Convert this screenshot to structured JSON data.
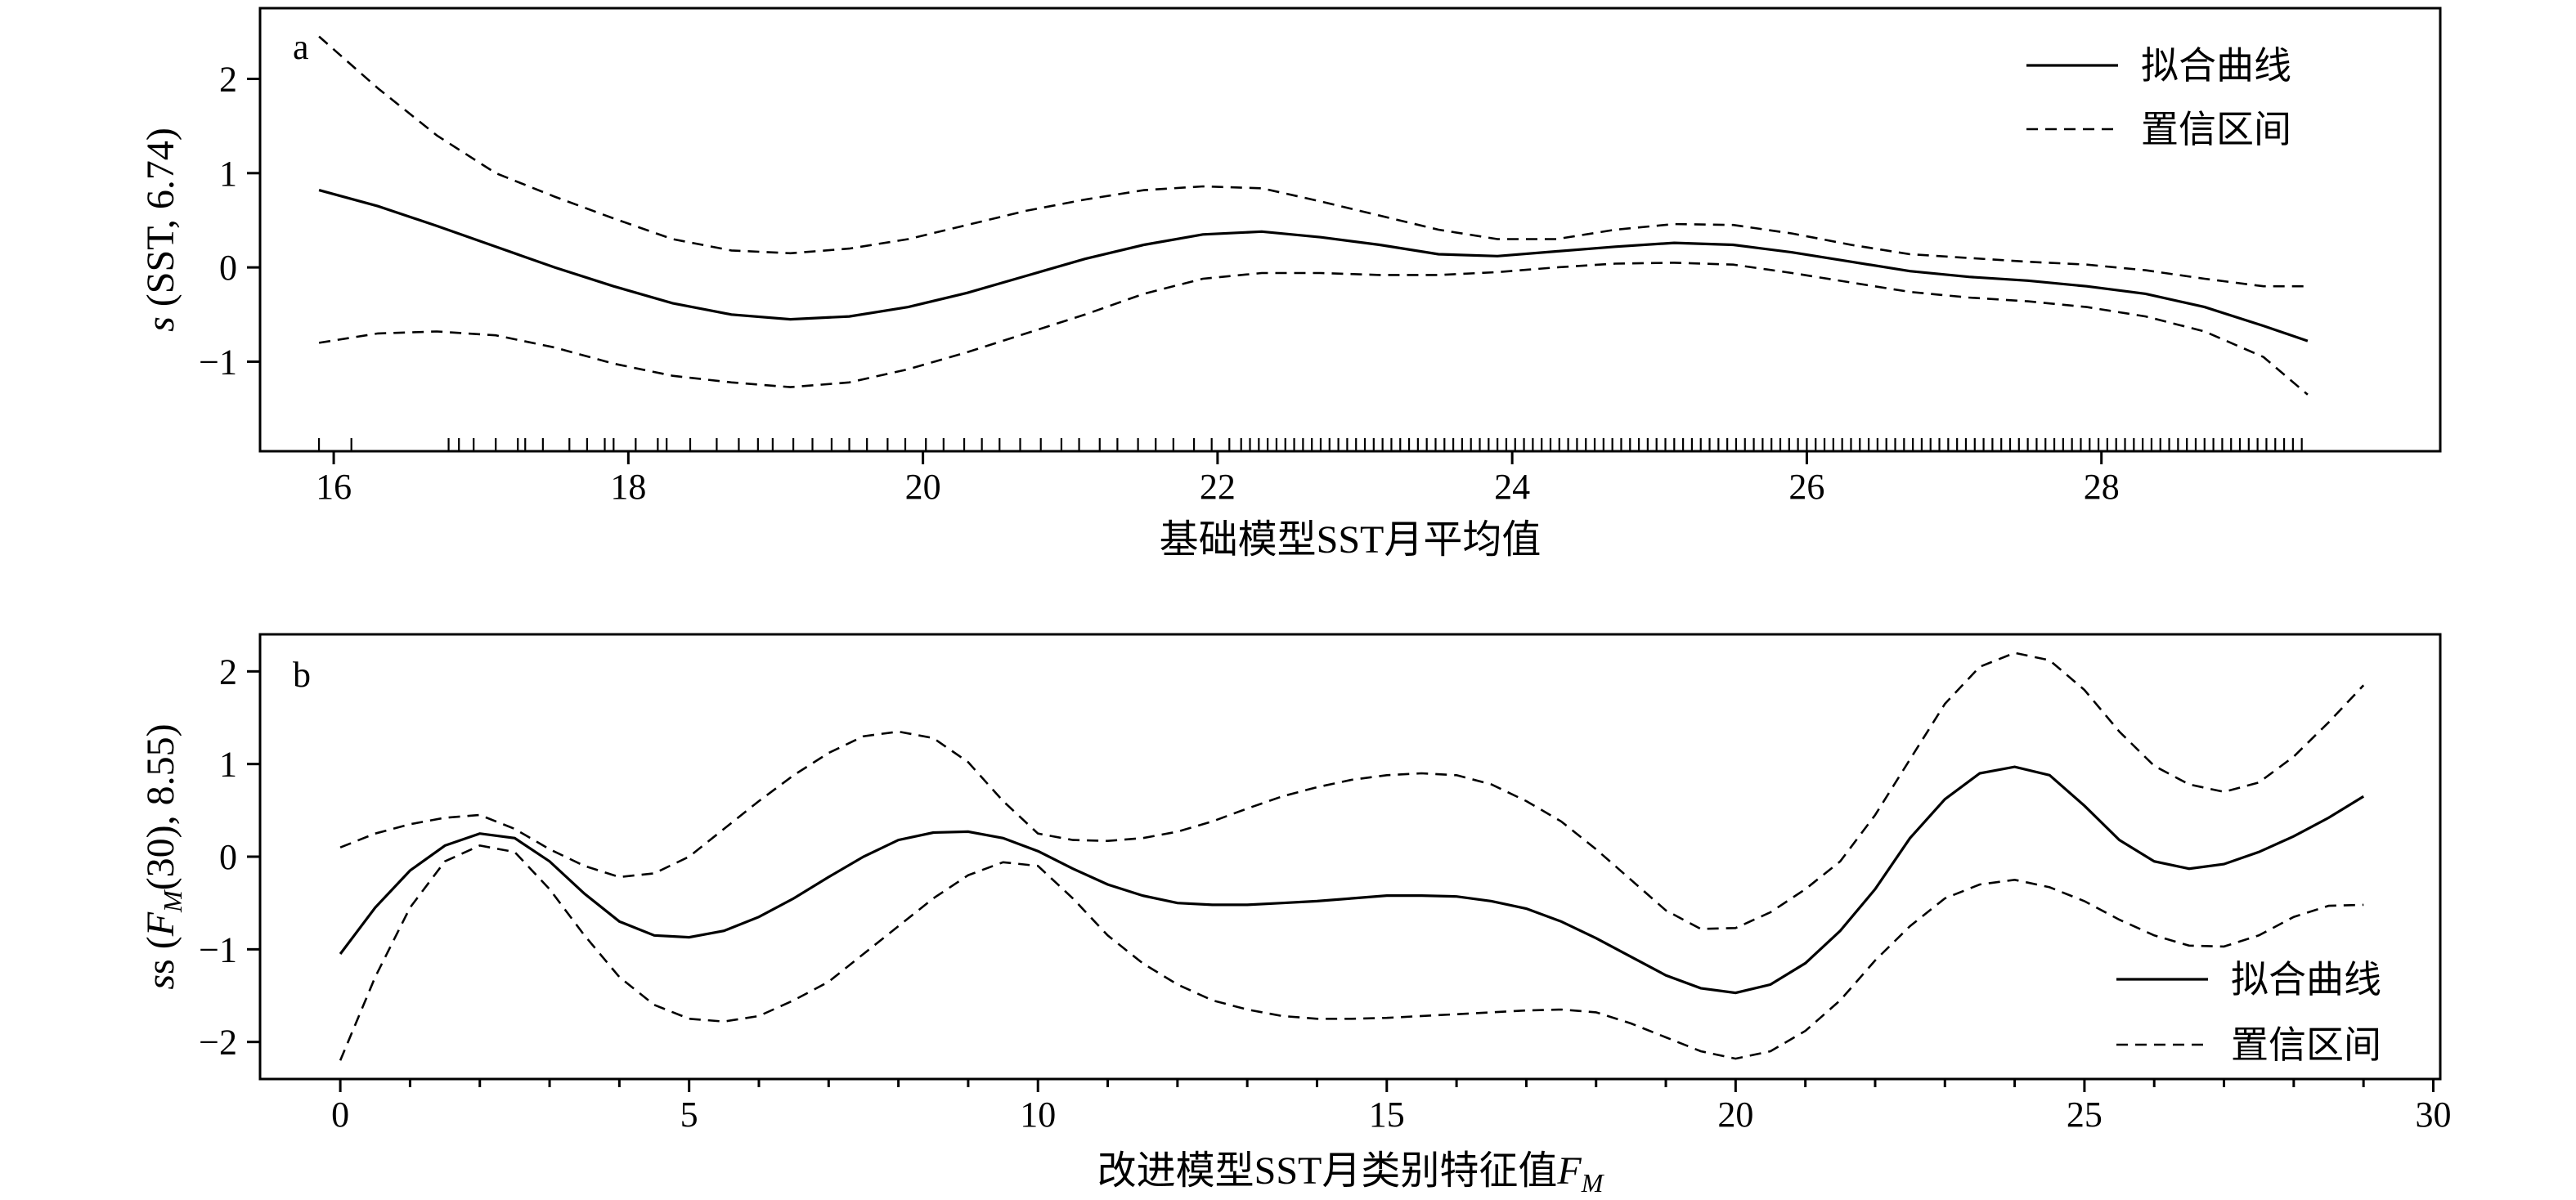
{
  "chart_data": [
    {
      "type": "line",
      "panel_label": "a",
      "xlabel": "基础模型SST月平均值",
      "ylabel": "s (SST, 6.74)",
      "xlim": [
        15.5,
        30.3
      ],
      "ylim": [
        -1.95,
        2.75
      ],
      "xticks": [
        16,
        18,
        20,
        22,
        24,
        26,
        28
      ],
      "yticks": [
        -1,
        0,
        1,
        2
      ],
      "minor_xticks": [],
      "legend_position": "top-right",
      "grid": false,
      "series": [
        {
          "name": "拟合曲线",
          "style": "solid",
          "x": [
            15.9,
            16.3,
            16.7,
            17.1,
            17.5,
            17.9,
            18.3,
            18.7,
            19.1,
            19.5,
            19.9,
            20.3,
            20.7,
            21.1,
            21.5,
            21.9,
            22.3,
            22.7,
            23.1,
            23.5,
            23.9,
            24.3,
            24.7,
            25.1,
            25.5,
            25.9,
            26.3,
            26.7,
            27.1,
            27.5,
            27.9,
            28.3,
            28.7,
            29.1,
            29.4
          ],
          "values": [
            0.82,
            0.65,
            0.44,
            0.22,
            0.0,
            -0.2,
            -0.38,
            -0.5,
            -0.55,
            -0.52,
            -0.42,
            -0.27,
            -0.09,
            0.09,
            0.24,
            0.35,
            0.38,
            0.32,
            0.24,
            0.14,
            0.12,
            0.17,
            0.22,
            0.26,
            0.24,
            0.16,
            0.06,
            -0.04,
            -0.1,
            -0.14,
            -0.2,
            -0.28,
            -0.42,
            -0.62,
            -0.78
          ]
        },
        {
          "name": "置信区间",
          "style": "dashed",
          "x": [
            15.9,
            16.3,
            16.7,
            17.1,
            17.5,
            17.9,
            18.3,
            18.7,
            19.1,
            19.5,
            19.9,
            20.3,
            20.7,
            21.1,
            21.5,
            21.9,
            22.3,
            22.7,
            23.1,
            23.5,
            23.9,
            24.3,
            24.7,
            25.1,
            25.5,
            25.9,
            26.3,
            26.7,
            27.1,
            27.5,
            27.9,
            28.3,
            28.7,
            29.1,
            29.4
          ],
          "values": [
            2.45,
            1.9,
            1.4,
            1.0,
            0.75,
            0.52,
            0.3,
            0.18,
            0.15,
            0.2,
            0.3,
            0.45,
            0.6,
            0.72,
            0.82,
            0.86,
            0.84,
            0.7,
            0.55,
            0.4,
            0.3,
            0.3,
            0.4,
            0.46,
            0.45,
            0.36,
            0.24,
            0.14,
            0.1,
            0.06,
            0.03,
            -0.03,
            -0.12,
            -0.2,
            -0.2
          ]
        },
        {
          "name": "",
          "style": "dashed",
          "x": [
            15.9,
            16.3,
            16.7,
            17.1,
            17.5,
            17.9,
            18.3,
            18.7,
            19.1,
            19.5,
            19.9,
            20.3,
            20.7,
            21.1,
            21.5,
            21.9,
            22.3,
            22.7,
            23.1,
            23.5,
            23.9,
            24.3,
            24.7,
            25.1,
            25.5,
            25.9,
            26.3,
            26.7,
            27.1,
            27.5,
            27.9,
            28.3,
            28.7,
            29.1,
            29.4
          ],
          "values": [
            -0.8,
            -0.7,
            -0.68,
            -0.72,
            -0.85,
            -1.02,
            -1.15,
            -1.22,
            -1.27,
            -1.22,
            -1.08,
            -0.9,
            -0.7,
            -0.5,
            -0.28,
            -0.12,
            -0.06,
            -0.06,
            -0.08,
            -0.08,
            -0.05,
            0.0,
            0.04,
            0.05,
            0.03,
            -0.06,
            -0.16,
            -0.26,
            -0.32,
            -0.36,
            -0.42,
            -0.52,
            -0.68,
            -0.95,
            -1.35
          ]
        }
      ],
      "rug_x": [
        15.9,
        16.12,
        16.78,
        16.85,
        16.95,
        17.1,
        17.25,
        17.3,
        17.42,
        17.6,
        17.72,
        17.84,
        17.9,
        18.05,
        18.2,
        18.26,
        18.42,
        18.6,
        18.75,
        18.88,
        18.98,
        19.12,
        19.25,
        19.38,
        19.5,
        19.62,
        19.76,
        19.88,
        20.02,
        20.14,
        20.28,
        20.4,
        20.52,
        20.66,
        20.8,
        20.94,
        21.06,
        21.2,
        21.32,
        21.46,
        21.58,
        21.7,
        21.84,
        21.96,
        22.08,
        22.16,
        22.22,
        22.28,
        22.34,
        22.4,
        22.46,
        22.52,
        22.58,
        22.64,
        22.7,
        22.76,
        22.82,
        22.88,
        22.94,
        23.0,
        23.06,
        23.12,
        23.18,
        23.24,
        23.3,
        23.36,
        23.42,
        23.48,
        23.54,
        23.6,
        23.66,
        23.72,
        23.78,
        23.84,
        23.9,
        23.96,
        24.02,
        24.08,
        24.14,
        24.2,
        24.26,
        24.32,
        24.38,
        24.44,
        24.5,
        24.56,
        24.62,
        24.68,
        24.74,
        24.8,
        24.86,
        24.92,
        24.98,
        25.04,
        25.1,
        25.16,
        25.22,
        25.28,
        25.34,
        25.4,
        25.46,
        25.52,
        25.58,
        25.64,
        25.7,
        25.76,
        25.82,
        25.88,
        25.94,
        26.0,
        26.06,
        26.12,
        26.18,
        26.24,
        26.3,
        26.36,
        26.42,
        26.48,
        26.54,
        26.6,
        26.66,
        26.72,
        26.78,
        26.84,
        26.9,
        26.96,
        27.02,
        27.08,
        27.14,
        27.2,
        27.26,
        27.32,
        27.38,
        27.44,
        27.5,
        27.56,
        27.62,
        27.68,
        27.74,
        27.8,
        27.86,
        27.92,
        27.98,
        28.04,
        28.1,
        28.16,
        28.22,
        28.28,
        28.34,
        28.4,
        28.46,
        28.52,
        28.58,
        28.64,
        28.7,
        28.76,
        28.82,
        28.88,
        28.94,
        29.0,
        29.06,
        29.12,
        29.18,
        29.24,
        29.3,
        29.36
      ]
    },
    {
      "type": "line",
      "panel_label": "b",
      "xlabel": "改进模型SST月类别特征值F_M",
      "xlabel_parts": [
        "改进模型SST月类别特征值",
        "F",
        "M"
      ],
      "ylabel": "s (F_M(30), 8.55)",
      "ylabel_parts": [
        "s (",
        "F",
        "M",
        "(30), 8.55)"
      ],
      "xlim": [
        -1.15,
        30.1
      ],
      "ylim": [
        -2.4,
        2.4
      ],
      "xticks": [
        0,
        5,
        10,
        15,
        20,
        25,
        30
      ],
      "yticks": [
        -2,
        -1,
        0,
        1,
        2
      ],
      "minor_xticks": [
        1,
        2,
        3,
        4,
        6,
        7,
        8,
        9,
        11,
        12,
        13,
        14,
        16,
        17,
        18,
        19,
        21,
        22,
        23,
        24,
        26,
        27,
        28,
        29
      ],
      "legend_position": "bottom-right",
      "grid": false,
      "series": [
        {
          "name": "拟合曲线",
          "style": "solid",
          "x": [
            0,
            0.5,
            1,
            1.5,
            2,
            2.5,
            3,
            3.5,
            4,
            4.5,
            5,
            5.5,
            6,
            6.5,
            7,
            7.5,
            8,
            8.5,
            9,
            9.5,
            10,
            10.5,
            11,
            11.5,
            12,
            12.5,
            13,
            13.5,
            14,
            14.5,
            15,
            15.5,
            16,
            16.5,
            17,
            17.5,
            18,
            18.5,
            19,
            19.5,
            20,
            20.5,
            21,
            21.5,
            22,
            22.5,
            23,
            23.5,
            24,
            24.5,
            25,
            25.5,
            26,
            26.5,
            27,
            27.5,
            28,
            28.5,
            29
          ],
          "values": [
            -1.05,
            -0.55,
            -0.15,
            0.12,
            0.25,
            0.2,
            -0.05,
            -0.4,
            -0.7,
            -0.85,
            -0.87,
            -0.8,
            -0.65,
            -0.45,
            -0.22,
            0.0,
            0.18,
            0.26,
            0.27,
            0.2,
            0.06,
            -0.13,
            -0.3,
            -0.42,
            -0.5,
            -0.52,
            -0.52,
            -0.5,
            -0.48,
            -0.45,
            -0.42,
            -0.42,
            -0.43,
            -0.48,
            -0.56,
            -0.7,
            -0.88,
            -1.08,
            -1.28,
            -1.42,
            -1.47,
            -1.38,
            -1.15,
            -0.8,
            -0.35,
            0.2,
            0.62,
            0.9,
            0.97,
            0.88,
            0.55,
            0.18,
            -0.05,
            -0.13,
            -0.08,
            0.05,
            0.22,
            0.42,
            0.65
          ]
        },
        {
          "name": "置信区间",
          "style": "dashed",
          "x": [
            0,
            0.5,
            1,
            1.5,
            2,
            2.5,
            3,
            3.5,
            4,
            4.5,
            5,
            5.5,
            6,
            6.5,
            7,
            7.5,
            8,
            8.5,
            9,
            9.5,
            10,
            10.5,
            11,
            11.5,
            12,
            12.5,
            13,
            13.5,
            14,
            14.5,
            15,
            15.5,
            16,
            16.5,
            17,
            17.5,
            18,
            18.5,
            19,
            19.5,
            20,
            20.5,
            21,
            21.5,
            22,
            22.5,
            23,
            23.5,
            24,
            24.5,
            25,
            25.5,
            26,
            26.5,
            27,
            27.5,
            28,
            28.5,
            29
          ],
          "values": [
            0.1,
            0.25,
            0.35,
            0.42,
            0.45,
            0.3,
            0.08,
            -0.1,
            -0.22,
            -0.18,
            0.0,
            0.3,
            0.6,
            0.88,
            1.12,
            1.3,
            1.35,
            1.28,
            1.02,
            0.6,
            0.25,
            0.18,
            0.17,
            0.2,
            0.27,
            0.38,
            0.52,
            0.65,
            0.75,
            0.83,
            0.88,
            0.9,
            0.88,
            0.78,
            0.6,
            0.38,
            0.08,
            -0.25,
            -0.58,
            -0.78,
            -0.77,
            -0.6,
            -0.35,
            -0.05,
            0.45,
            1.05,
            1.65,
            2.05,
            2.2,
            2.12,
            1.8,
            1.35,
            0.98,
            0.78,
            0.7,
            0.8,
            1.08,
            1.45,
            1.85
          ]
        },
        {
          "name": "",
          "style": "dashed",
          "x": [
            0,
            0.5,
            1,
            1.5,
            2,
            2.5,
            3,
            3.5,
            4,
            4.5,
            5,
            5.5,
            6,
            6.5,
            7,
            7.5,
            8,
            8.5,
            9,
            9.5,
            10,
            10.5,
            11,
            11.5,
            12,
            12.5,
            13,
            13.5,
            14,
            14.5,
            15,
            15.5,
            16,
            16.5,
            17,
            17.5,
            18,
            18.5,
            19,
            19.5,
            20,
            20.5,
            21,
            21.5,
            22,
            22.5,
            23,
            23.5,
            24,
            24.5,
            25,
            25.5,
            26,
            26.5,
            27,
            27.5,
            28,
            28.5,
            29
          ],
          "values": [
            -2.2,
            -1.3,
            -0.55,
            -0.05,
            0.12,
            0.05,
            -0.35,
            -0.85,
            -1.3,
            -1.6,
            -1.75,
            -1.78,
            -1.72,
            -1.55,
            -1.35,
            -1.05,
            -0.75,
            -0.45,
            -0.2,
            -0.06,
            -0.1,
            -0.45,
            -0.85,
            -1.15,
            -1.38,
            -1.55,
            -1.65,
            -1.72,
            -1.75,
            -1.75,
            -1.74,
            -1.72,
            -1.7,
            -1.68,
            -1.66,
            -1.65,
            -1.68,
            -1.8,
            -1.95,
            -2.1,
            -2.18,
            -2.1,
            -1.88,
            -1.55,
            -1.12,
            -0.75,
            -0.45,
            -0.3,
            -0.25,
            -0.33,
            -0.48,
            -0.68,
            -0.85,
            -0.96,
            -0.97,
            -0.85,
            -0.65,
            -0.53,
            -0.52
          ]
        }
      ]
    }
  ]
}
